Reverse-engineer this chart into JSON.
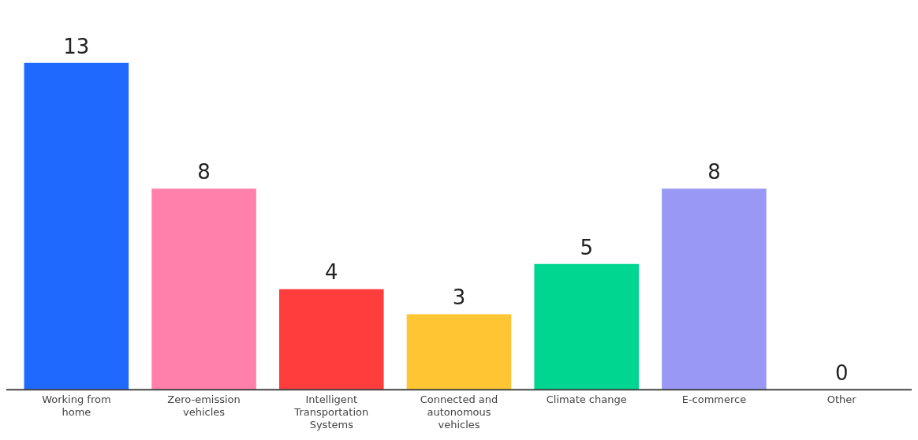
{
  "chart_data": {
    "type": "bar",
    "categories": [
      "Working from home",
      "Zero-emission vehicles",
      "Intelligent Transportation Systems",
      "Connected and autonomous vehicles",
      "Climate change",
      "E-commerce",
      "Other"
    ],
    "values": [
      13,
      8,
      4,
      3,
      5,
      8,
      0
    ],
    "colors": [
      "#1f69ff",
      "#ff80ab",
      "#ff3d3d",
      "#ffc533",
      "#00d68f",
      "#9999f5",
      "#bbbbbb"
    ],
    "data_labels": true,
    "grid": false,
    "legend": false
  }
}
